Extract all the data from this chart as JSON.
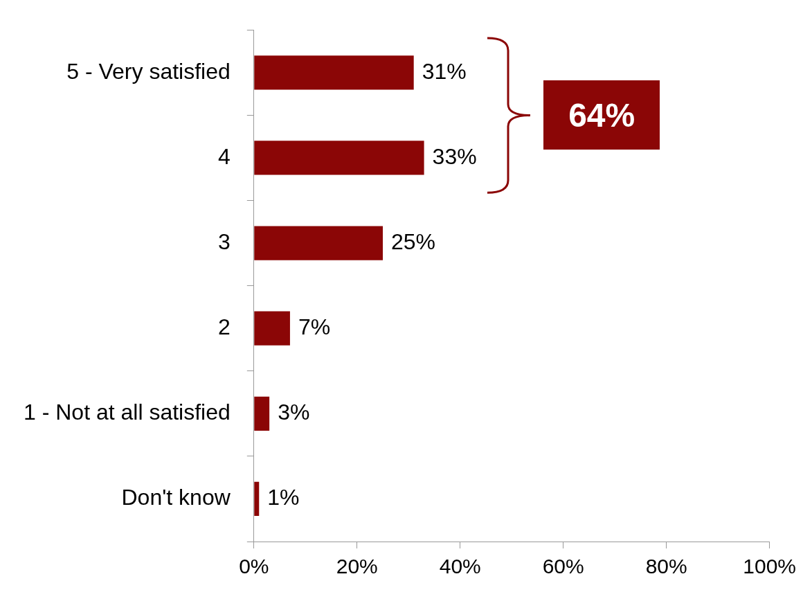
{
  "chart_data": {
    "type": "bar",
    "orientation": "horizontal",
    "categories": [
      "5 - Very satisfied",
      "4",
      "3",
      "2",
      "1 - Not at all satisfied",
      "Don't know"
    ],
    "values": [
      31,
      33,
      25,
      7,
      3,
      1
    ],
    "value_labels": [
      "31%",
      "33%",
      "25%",
      "7%",
      "3%",
      "1%"
    ],
    "color": "#8b0606",
    "xlim": [
      0,
      100
    ],
    "xticks": [
      {
        "value": 0,
        "label": "0%"
      },
      {
        "value": 20,
        "label": "20%"
      },
      {
        "value": 40,
        "label": "40%"
      },
      {
        "value": 60,
        "label": "60%"
      },
      {
        "value": 80,
        "label": "80%"
      },
      {
        "value": 100,
        "label": "100%"
      }
    ],
    "annotations": [
      "64%"
    ],
    "grid": false,
    "legend": false
  }
}
